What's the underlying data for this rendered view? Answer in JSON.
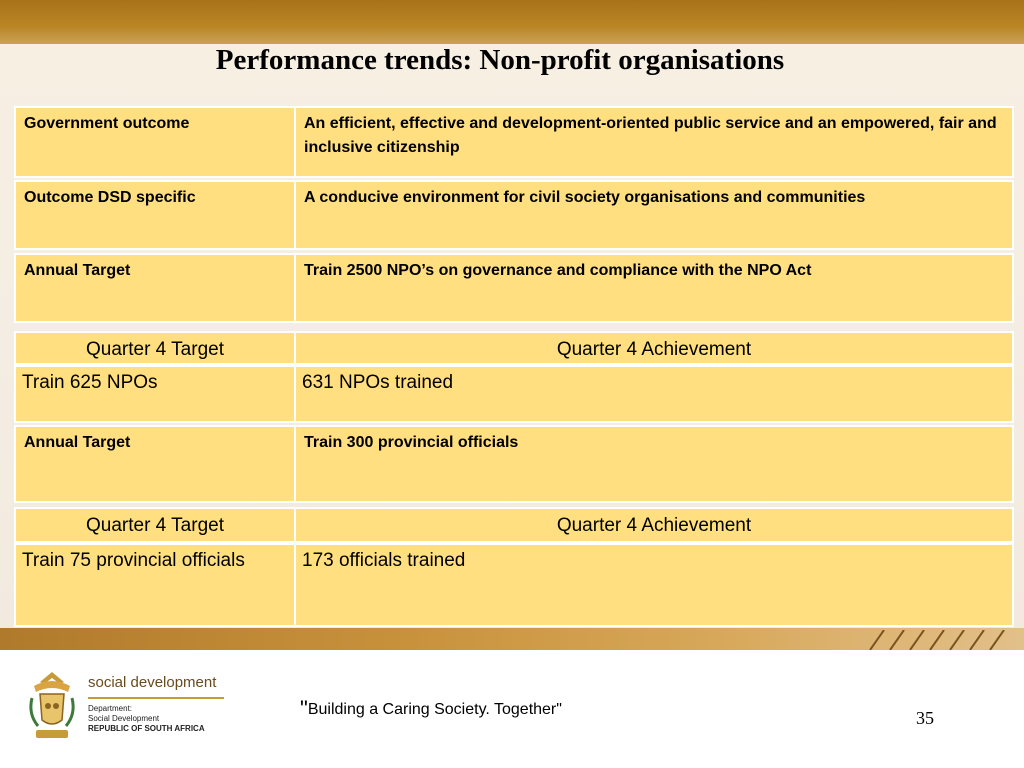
{
  "title": "Performance trends: Non-profit organisations",
  "rows": [
    {
      "label": "Government outcome",
      "value": "An efficient, effective and development-oriented public service and an empowered, fair and inclusive citizenship"
    },
    {
      "label": "Outcome DSD specific",
      "value": "A conducive environment for civil society organisations and communities"
    },
    {
      "label": "Annual Target",
      "value": "Train 2500 NPO’s on governance and compliance with the NPO Act"
    }
  ],
  "block1": {
    "header_target": "Quarter 4 Target",
    "header_achievement": "Quarter 4 Achievement",
    "target": "Train 625 NPOs",
    "achievement": "631 NPOs trained"
  },
  "annual2": {
    "label": "Annual Target",
    "value": "Train 300 provincial officials"
  },
  "block2": {
    "header_target": "Quarter 4 Target",
    "header_achievement": "Quarter 4 Achievement",
    "target": "Train 75 provincial officials",
    "achievement": "173 officials trained"
  },
  "footer": {
    "brand": "social development",
    "dept_line1": "Department:",
    "dept_line2": "Social Development",
    "dept_line3": "REPUBLIC OF SOUTH AFRICA",
    "slogan_quote_open": "\"",
    "slogan": "Building a Caring Society. Together\"",
    "page_number": "35"
  },
  "colors": {
    "cell_fill": "#ffdf7f",
    "band_brown": "#a8721a"
  }
}
